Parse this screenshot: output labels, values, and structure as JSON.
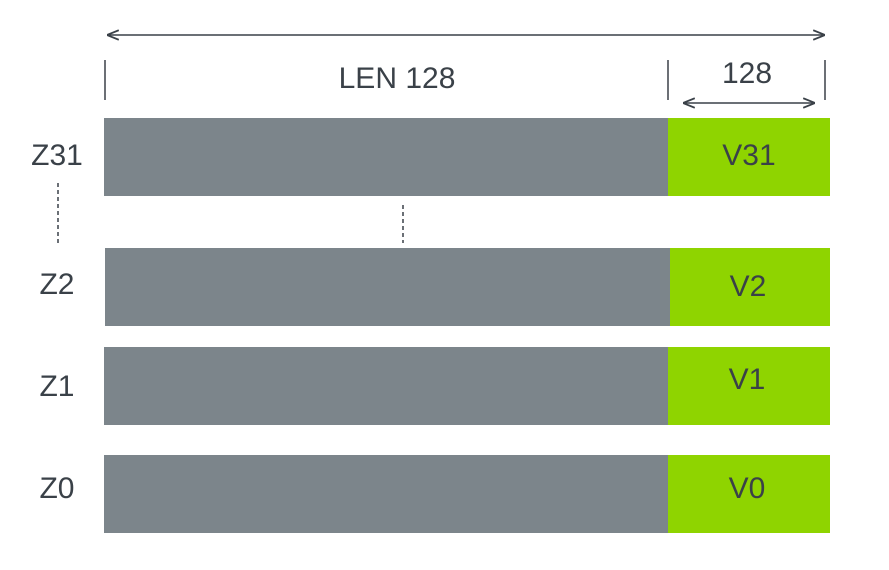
{
  "top_label": "LEN 128",
  "side_label": "128",
  "rows": [
    {
      "z": "Z31",
      "v": "V31"
    },
    {
      "z": "Z2",
      "v": "V2"
    },
    {
      "z": "Z1",
      "v": "V1"
    },
    {
      "z": "Z0",
      "v": "V0"
    }
  ]
}
